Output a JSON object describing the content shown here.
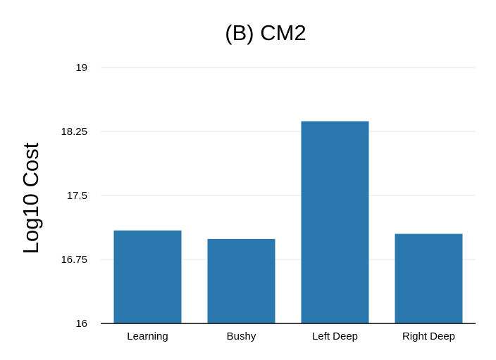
{
  "chart_data": {
    "type": "bar",
    "title": "(B) CM2",
    "xlabel": "",
    "ylabel": "Log10 Cost",
    "categories": [
      "Learning",
      "Bushy",
      "Left Deep",
      "Right Deep"
    ],
    "values": [
      17.09,
      16.99,
      18.37,
      17.05
    ],
    "ylim": [
      16,
      19
    ],
    "yticks": [
      16,
      16.75,
      17.5,
      18.25,
      19
    ],
    "ytick_labels": [
      "16",
      "16.75",
      "17.5",
      "18.25",
      "19"
    ],
    "grid": true,
    "bar_color": "#2a77ad",
    "legend": null
  }
}
